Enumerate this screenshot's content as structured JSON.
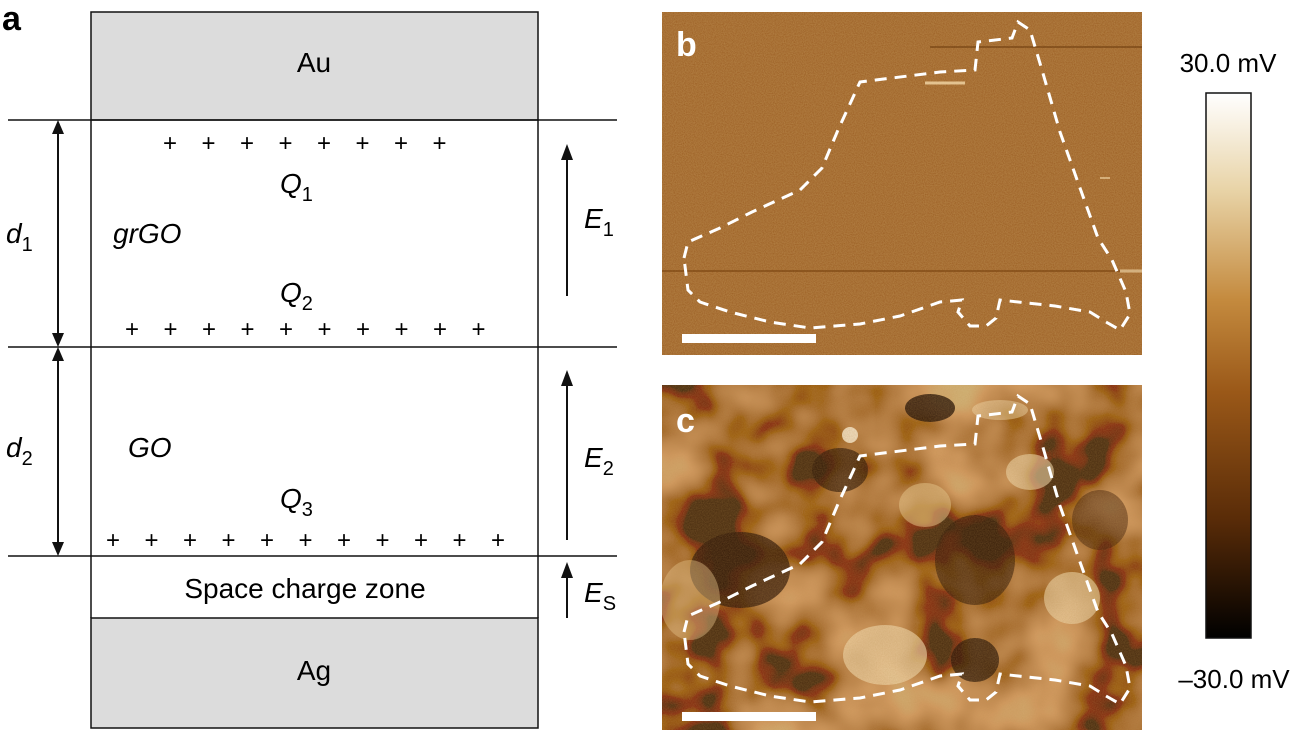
{
  "panel_a": {
    "letter": "a",
    "top_electrode": "Au",
    "bottom_electrode": "Ag",
    "space_charge": "Space charge zone",
    "layer1": "grGO",
    "layer2": "GO",
    "d1": {
      "base": "d",
      "sub": "1"
    },
    "d2": {
      "base": "d",
      "sub": "2"
    },
    "q1": {
      "base": "Q",
      "sub": "1"
    },
    "q2": {
      "base": "Q",
      "sub": "2"
    },
    "q3": {
      "base": "Q",
      "sub": "3"
    },
    "e1": {
      "base": "E",
      "sub": "1"
    },
    "e2": {
      "base": "E",
      "sub": "2"
    },
    "es": {
      "base": "E",
      "sub": "S"
    },
    "plus_symbol": "+",
    "plus_counts": {
      "row1": 8,
      "row2": 10,
      "row3": 11
    }
  },
  "panel_b": {
    "letter": "b"
  },
  "panel_c": {
    "letter": "c"
  },
  "colorbar": {
    "max_label": "30.0 mV",
    "min_label": "–30.0 mV",
    "colors": [
      "#ffffff",
      "#e8d3a6",
      "#c48a3e",
      "#9a5818",
      "#5a2c08",
      "#000000"
    ]
  },
  "colors": {
    "electrode_fill": "#dcdcdc",
    "afm_b_base": "#9a5a1c",
    "afm_c_base": "#9b5c1e"
  }
}
